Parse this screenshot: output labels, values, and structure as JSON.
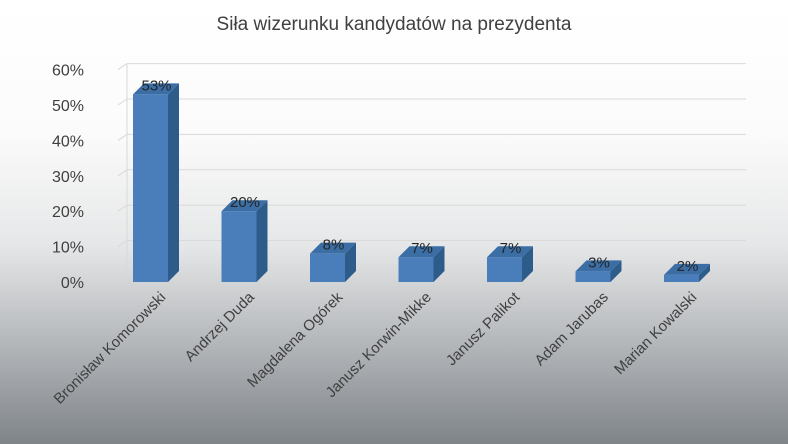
{
  "chart_data": {
    "type": "bar",
    "title": "Siła wizerunku kandydatów na prezydenta",
    "categories": [
      "Bronisław Komorowski",
      "Andrzej Duda",
      "Magdalena Ogórek",
      "Janusz Korwin-Mikke",
      "Janusz Palikot",
      "Adam Jarubas",
      "Marian Kowalski"
    ],
    "values": [
      53,
      20,
      8,
      7,
      7,
      3,
      2
    ],
    "data_labels": [
      "53%",
      "20%",
      "8%",
      "7%",
      "7%",
      "3%",
      "2%"
    ],
    "y_ticks": [
      "0%",
      "10%",
      "20%",
      "30%",
      "40%",
      "50%",
      "60%"
    ],
    "ylim": [
      0,
      60
    ],
    "y_unit": "%",
    "grid": true,
    "bar_style": "3d",
    "colors": {
      "bar_front": "#4a7ebb",
      "bar_side": "#2e5c8a",
      "bar_top": "#3a6ea5",
      "grid": "#d9d9d9"
    }
  }
}
